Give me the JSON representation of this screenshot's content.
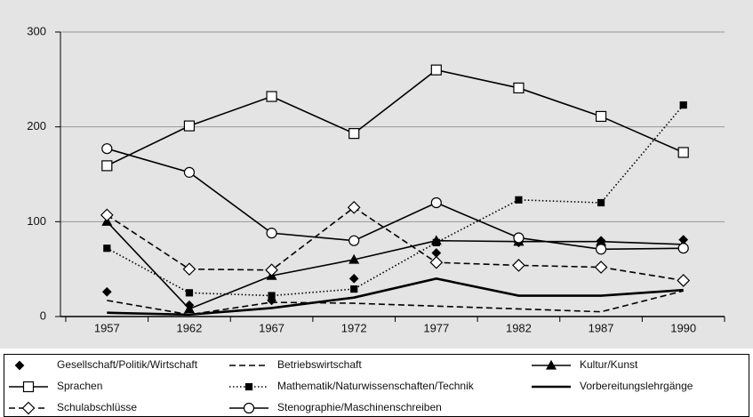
{
  "chart_data": {
    "type": "line",
    "categories": [
      "1957",
      "1962",
      "1967",
      "1972",
      "1977",
      "1982",
      "1987",
      "1990"
    ],
    "ylim": [
      0,
      300
    ],
    "yticks": [
      0,
      100,
      200,
      300
    ],
    "grid": true,
    "series": [
      {
        "name": "Gesellschaft/Politik/Wirtschaft",
        "color": "#000000",
        "line": "none",
        "marker": "diamond-filled",
        "values": [
          26,
          12,
          17,
          40,
          67,
          78,
          80,
          81
        ]
      },
      {
        "name": "Betriebswirtschaft",
        "color": "#000000",
        "line": "dashed",
        "marker": "none",
        "values": [
          17,
          2,
          15,
          14,
          11,
          8,
          5,
          27
        ]
      },
      {
        "name": "Kultur/Kunst",
        "color": "#000000",
        "line": "solid",
        "marker": "triangle-filled",
        "values": [
          100,
          8,
          43,
          60,
          80,
          79,
          79,
          76
        ]
      },
      {
        "name": "Sprachen",
        "color": "#000000",
        "line": "solid",
        "marker": "square-open",
        "values": [
          159,
          201,
          232,
          193,
          260,
          241,
          211,
          173
        ]
      },
      {
        "name": "Mathematik/Naturwissenschaften/Technik",
        "color": "#000000",
        "line": "dotted",
        "marker": "square-filled",
        "values": [
          72,
          25,
          22,
          29,
          78,
          123,
          120,
          223
        ]
      },
      {
        "name": "Vorbereitungslehrgänge",
        "color": "#000000",
        "line": "thick",
        "marker": "none",
        "values": [
          4,
          2,
          9,
          20,
          40,
          22,
          22,
          28
        ]
      },
      {
        "name": "Schulabschlüsse",
        "color": "#000000",
        "line": "dashed",
        "marker": "diamond-open",
        "values": [
          107,
          50,
          49,
          115,
          57,
          54,
          52,
          38
        ]
      },
      {
        "name": "Stenographie/Maschinenschreiben",
        "color": "#000000",
        "line": "solid",
        "marker": "circle-open",
        "values": [
          177,
          152,
          88,
          80,
          120,
          83,
          71,
          72
        ]
      }
    ]
  }
}
